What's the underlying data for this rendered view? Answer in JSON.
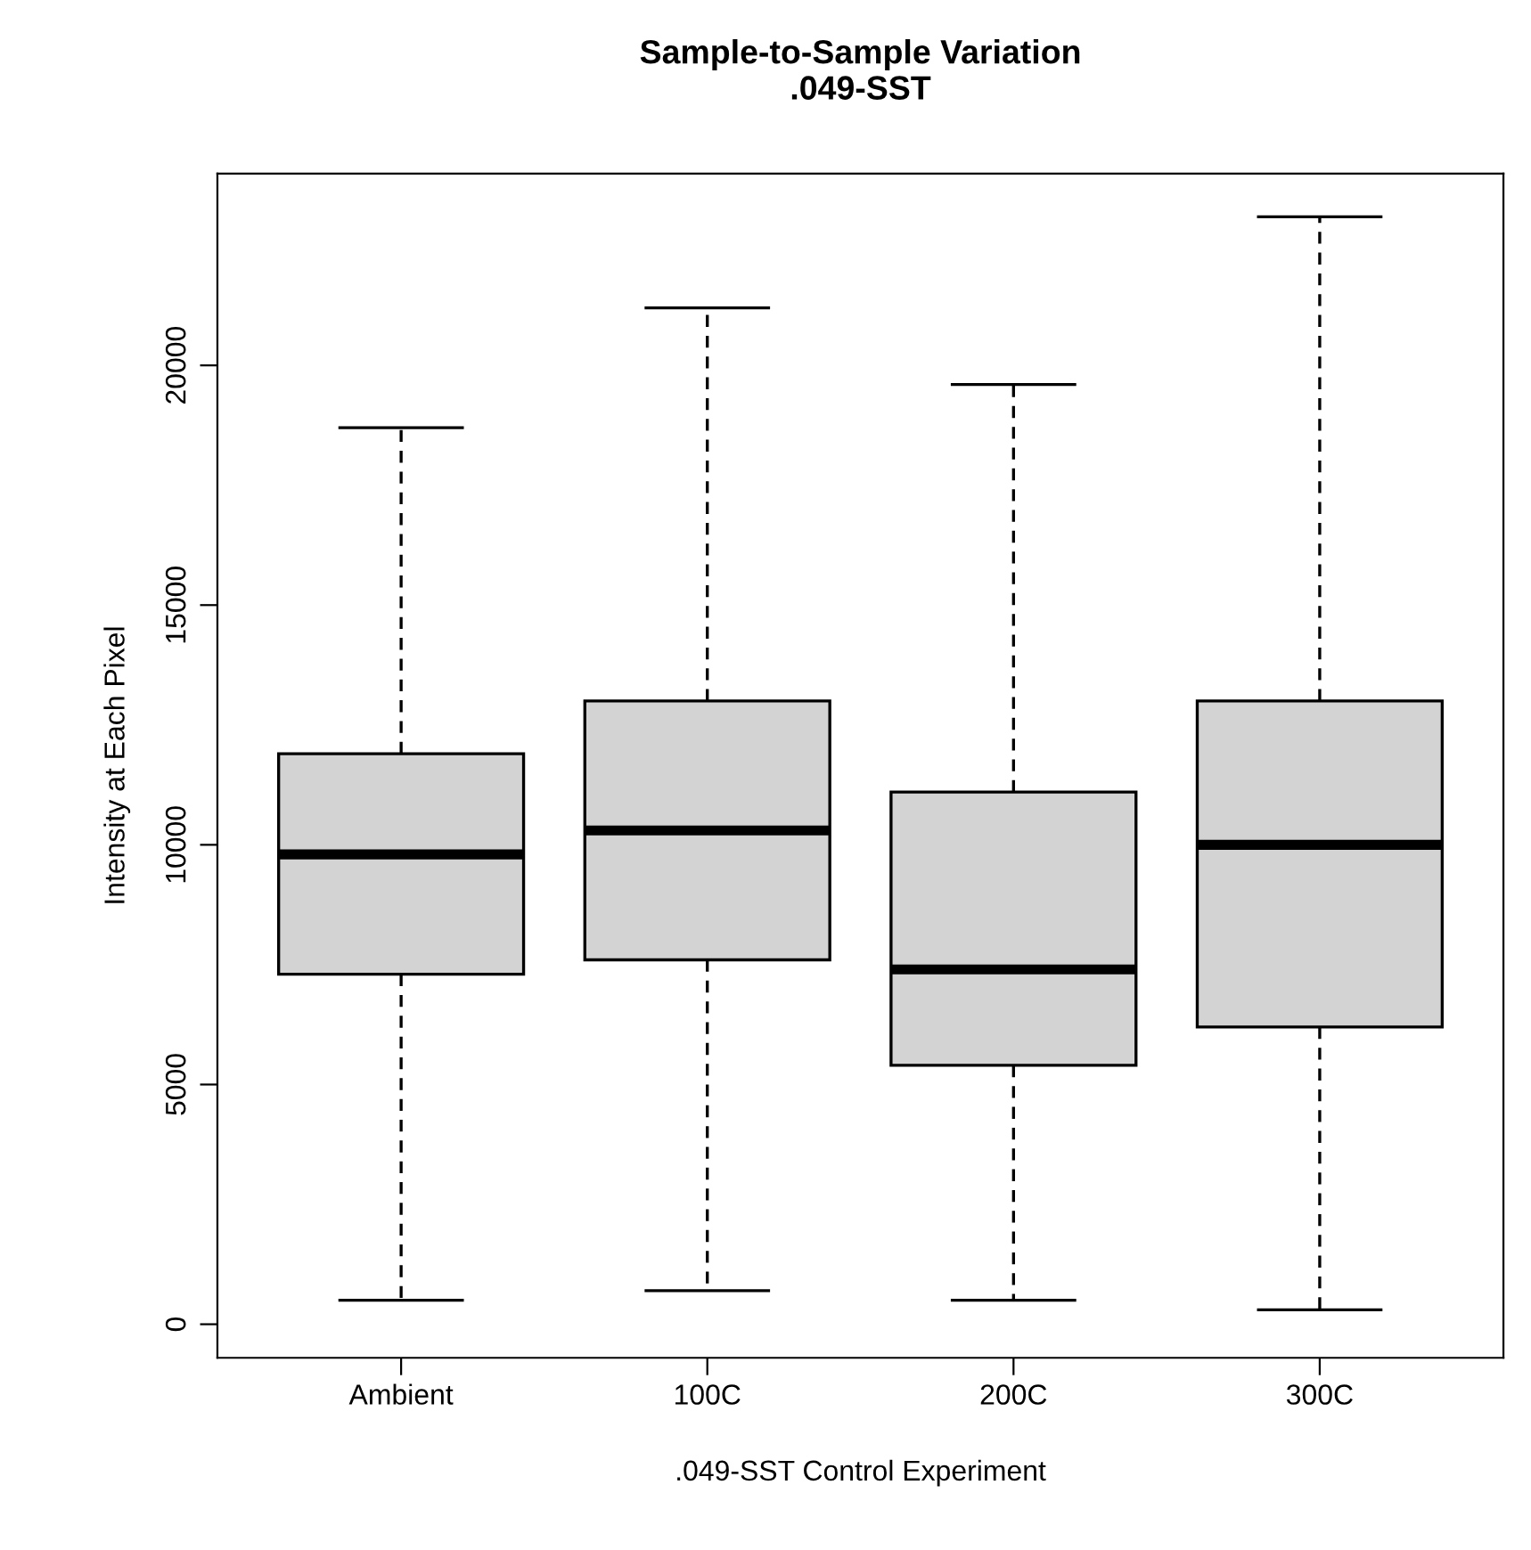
{
  "chart_data": {
    "type": "box",
    "title": "Sample-to-Sample Variation\n.049-SST",
    "xlabel": ".049-SST Control Experiment",
    "ylabel": "Intensity at Each Pixel",
    "categories": [
      "Ambient",
      "100C",
      "200C",
      "300C"
    ],
    "color": "#d3d3d3",
    "boxes": [
      {
        "low": 500,
        "q1": 7300,
        "median": 9800,
        "q3": 11900,
        "high": 18700
      },
      {
        "low": 700,
        "q1": 7600,
        "median": 10300,
        "q3": 13000,
        "high": 21200
      },
      {
        "low": 500,
        "q1": 5400,
        "median": 7400,
        "q3": 11100,
        "high": 19600
      },
      {
        "low": 300,
        "q1": 6200,
        "median": 10000,
        "q3": 13000,
        "high": 23100
      }
    ],
    "ylim": [
      -700,
      24000
    ],
    "yticks": [
      0,
      5000,
      10000,
      15000,
      20000
    ],
    "grid": false,
    "legend": false
  }
}
